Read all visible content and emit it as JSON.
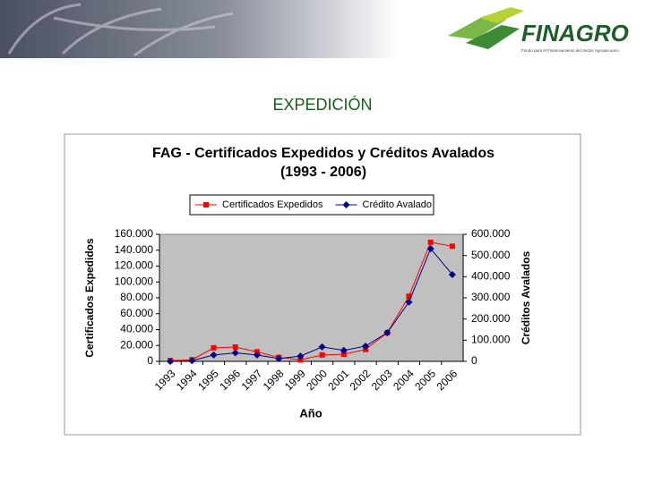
{
  "header": {
    "logo": "FINAGRO",
    "logo_subtitle": "Fondo para el Financiamiento del Sector Agropecuario"
  },
  "slide_title": "EXPEDICIÓN",
  "chart_data": {
    "type": "line",
    "title": "FAG - Certificados Expedidos y Créditos Avalados",
    "subtitle": "(1993 - 2006)",
    "x_label": "Año",
    "y_label": "Certificados Expedidos",
    "y2_label": "Créditos Avalados",
    "categories": [
      "1993",
      "1994",
      "1995",
      "1996",
      "1997",
      "1998",
      "1999",
      "2000",
      "2001",
      "2002",
      "2003",
      "2004",
      "2005",
      "2006"
    ],
    "series": [
      {
        "name": "Certificados Expedidos",
        "color": "#ff0000",
        "marker": "square",
        "values": [
          1000,
          2000,
          17000,
          18000,
          12000,
          5000,
          2000,
          8000,
          9000,
          15000,
          36000,
          82000,
          150000,
          145000
        ]
      },
      {
        "name": "Crédito Avalado",
        "color": "#000080",
        "marker": "diamond",
        "axis": "y2",
        "values": [
          0,
          3000,
          30000,
          40000,
          30000,
          13000,
          25000,
          68000,
          52000,
          72000,
          135000,
          280000,
          532000,
          410000
        ]
      }
    ],
    "ylim": [
      0,
      160000
    ],
    "yticks": [
      0,
      {
        "value": 20000,
        "label": "20.000"
      },
      {
        "value": 40000,
        "label": "40.000"
      },
      {
        "value": 60000,
        "label": "60.000"
      },
      {
        "value": 80000,
        "label": "80.000"
      },
      {
        "value": 100000,
        "label": "100.000"
      },
      {
        "value": 120000,
        "label": "120.000"
      },
      {
        "value": 140000,
        "label": "140.000"
      },
      {
        "value": 160000,
        "label": "160.000"
      }
    ],
    "y2lim": [
      0,
      600000
    ],
    "y2ticks": [
      0,
      {
        "value": 100000,
        "label": "100.000"
      },
      {
        "value": 200000,
        "label": "200.000"
      },
      {
        "value": 300000,
        "label": "300.000"
      },
      {
        "value": 400000,
        "label": "400.000"
      },
      {
        "value": 500000,
        "label": "500.000"
      },
      {
        "value": 600000,
        "label": "600.000"
      }
    ],
    "legend": "top",
    "plot_background": "#c0c0c0"
  }
}
